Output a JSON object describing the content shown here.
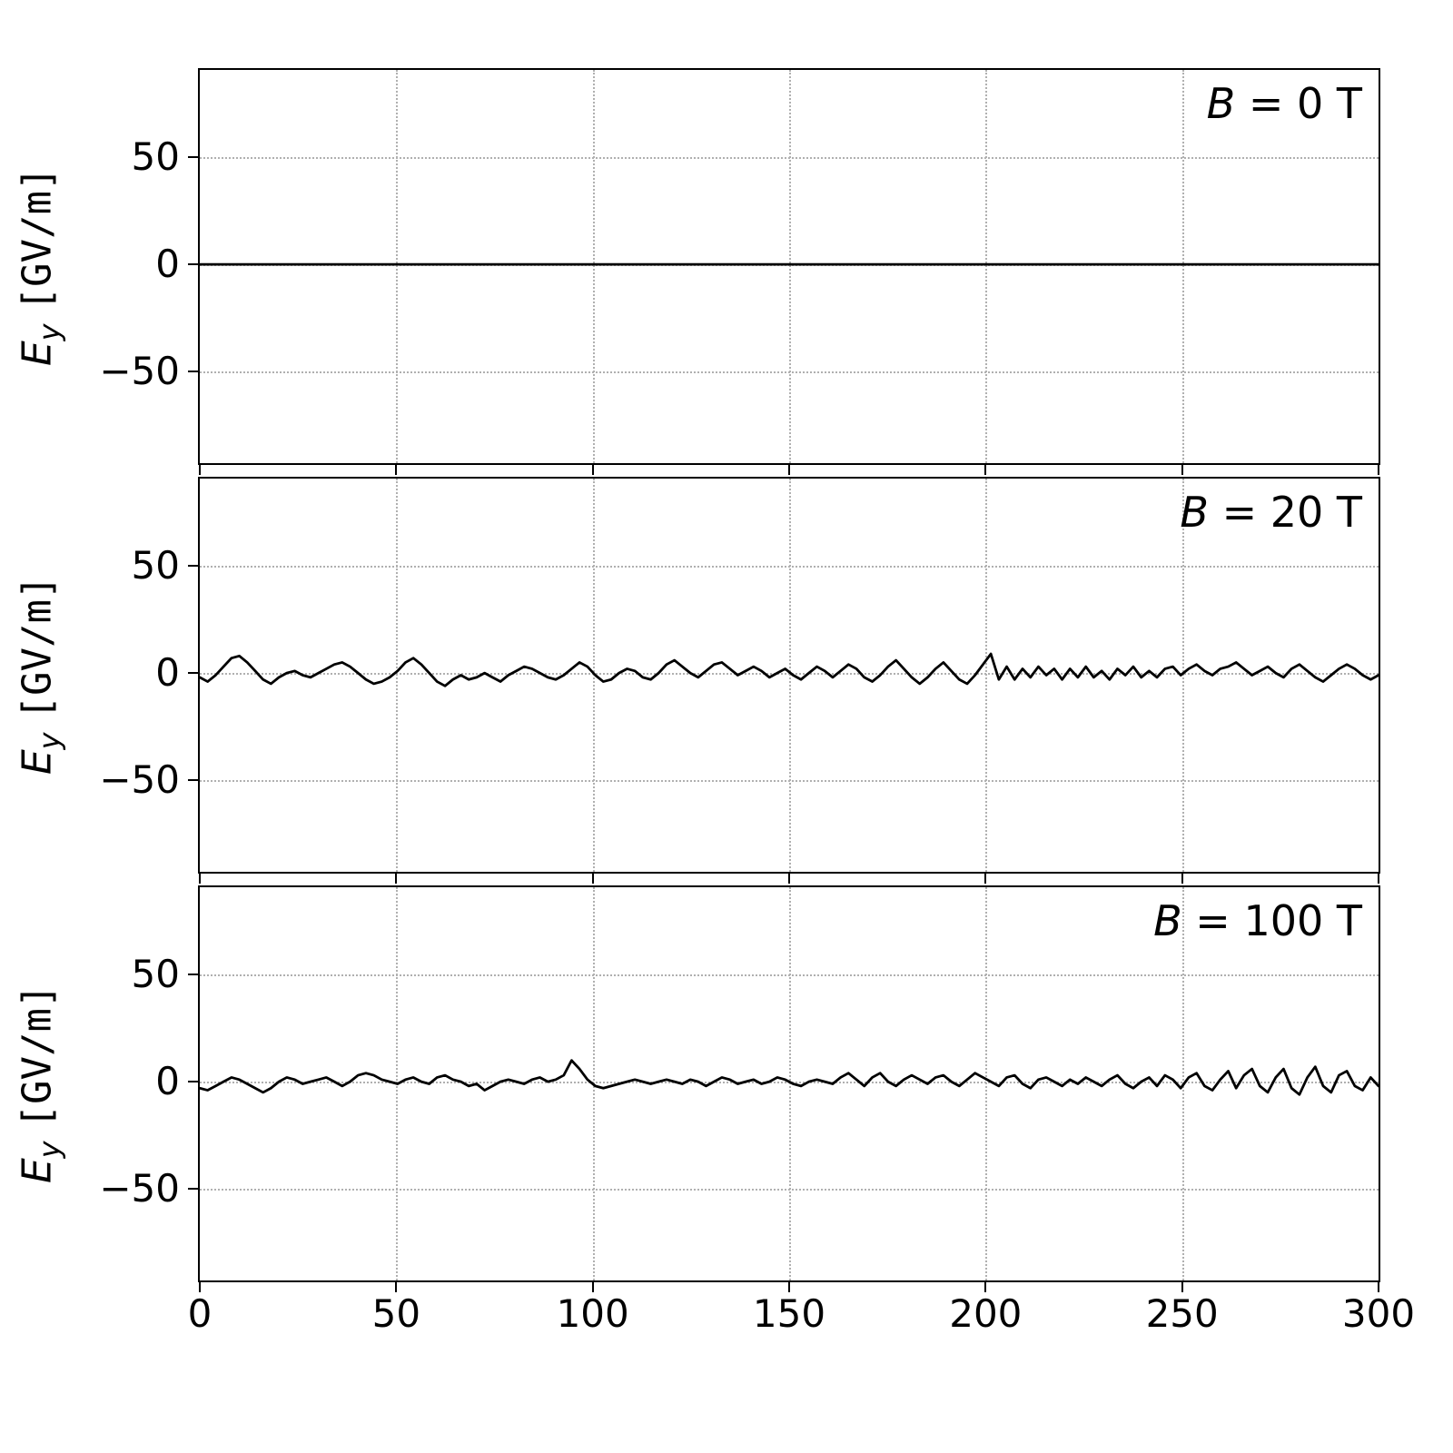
{
  "figure": {
    "background": "#ffffff"
  },
  "ylabel": {
    "var": "E",
    "sub": "y",
    "units": "[GV/m]"
  },
  "chart_data": {
    "type": "line",
    "title": "",
    "xlabel": "",
    "x_range": [
      0,
      300
    ],
    "y_range": [
      -93,
      91
    ],
    "x_ticks": [
      0,
      50,
      100,
      150,
      200,
      250,
      300
    ],
    "x_tick_labels": [
      "0",
      "50",
      "100",
      "150",
      "200",
      "250",
      "300"
    ],
    "y_ticks": [
      50,
      0,
      -50
    ],
    "y_tick_labels": [
      "50",
      "0",
      "−50"
    ],
    "grid": "dotted",
    "line_color": "#000000",
    "grid_color": "#b0b0b0",
    "panels": [
      {
        "annotation": "B = 0 T",
        "annotation_var": "B",
        "annotation_rest": " = 0 T",
        "values": [
          0,
          0
        ]
      },
      {
        "annotation": "B = 20 T",
        "annotation_var": "B",
        "annotation_rest": " = 20 T",
        "values": [
          -2,
          -4,
          -1,
          3,
          7,
          8,
          5,
          1,
          -3,
          -5,
          -2,
          0,
          1,
          -1,
          -2,
          0,
          2,
          4,
          5,
          3,
          0,
          -3,
          -5,
          -4,
          -2,
          1,
          5,
          7,
          4,
          0,
          -4,
          -6,
          -3,
          -1,
          -3,
          -2,
          0,
          -2,
          -4,
          -1,
          1,
          3,
          2,
          0,
          -2,
          -3,
          -1,
          2,
          5,
          3,
          -1,
          -4,
          -3,
          0,
          2,
          1,
          -2,
          -3,
          0,
          4,
          6,
          3,
          0,
          -2,
          1,
          4,
          5,
          2,
          -1,
          1,
          3,
          1,
          -2,
          0,
          2,
          -1,
          -3,
          0,
          3,
          1,
          -2,
          1,
          4,
          2,
          -2,
          -4,
          -1,
          3,
          6,
          2,
          -2,
          -5,
          -2,
          2,
          5,
          1,
          -3,
          -5,
          -1,
          4,
          9,
          -3,
          3,
          -3,
          2,
          -2,
          3,
          -1,
          2,
          -3,
          2,
          -2,
          3,
          -2,
          1,
          -3,
          2,
          -1,
          3,
          -2,
          1,
          -2,
          2,
          3,
          -1,
          2,
          4,
          1,
          -1,
          2,
          3,
          5,
          2,
          -1,
          1,
          3,
          0,
          -2,
          2,
          4,
          1,
          -2,
          -4,
          -1,
          2,
          4,
          2,
          -1,
          -3,
          -1
        ]
      },
      {
        "annotation": "B = 100 T",
        "annotation_var": "B",
        "annotation_rest": " = 100 T",
        "values": [
          -3,
          -4,
          -2,
          0,
          2,
          1,
          -1,
          -3,
          -5,
          -3,
          0,
          2,
          1,
          -1,
          0,
          1,
          2,
          0,
          -2,
          0,
          3,
          4,
          3,
          1,
          0,
          -1,
          1,
          2,
          0,
          -1,
          2,
          3,
          1,
          0,
          -2,
          -1,
          -4,
          -2,
          0,
          1,
          0,
          -1,
          1,
          2,
          0,
          1,
          3,
          10,
          6,
          1,
          -2,
          -3,
          -2,
          -1,
          0,
          1,
          0,
          -1,
          0,
          1,
          0,
          -1,
          1,
          0,
          -2,
          0,
          2,
          1,
          -1,
          0,
          1,
          -1,
          0,
          2,
          1,
          -1,
          -2,
          0,
          1,
          0,
          -1,
          2,
          4,
          1,
          -2,
          2,
          4,
          0,
          -2,
          1,
          3,
          1,
          -1,
          2,
          3,
          0,
          -2,
          1,
          4,
          2,
          0,
          -2,
          2,
          3,
          -1,
          -3,
          1,
          2,
          0,
          -2,
          1,
          -1,
          2,
          0,
          -2,
          1,
          3,
          -1,
          -3,
          0,
          2,
          -2,
          3,
          1,
          -3,
          2,
          4,
          -2,
          -4,
          1,
          5,
          -3,
          3,
          6,
          -2,
          -5,
          2,
          6,
          -3,
          -6,
          2,
          7,
          -2,
          -5,
          3,
          5,
          -2,
          -4,
          2,
          -2
        ]
      }
    ]
  }
}
